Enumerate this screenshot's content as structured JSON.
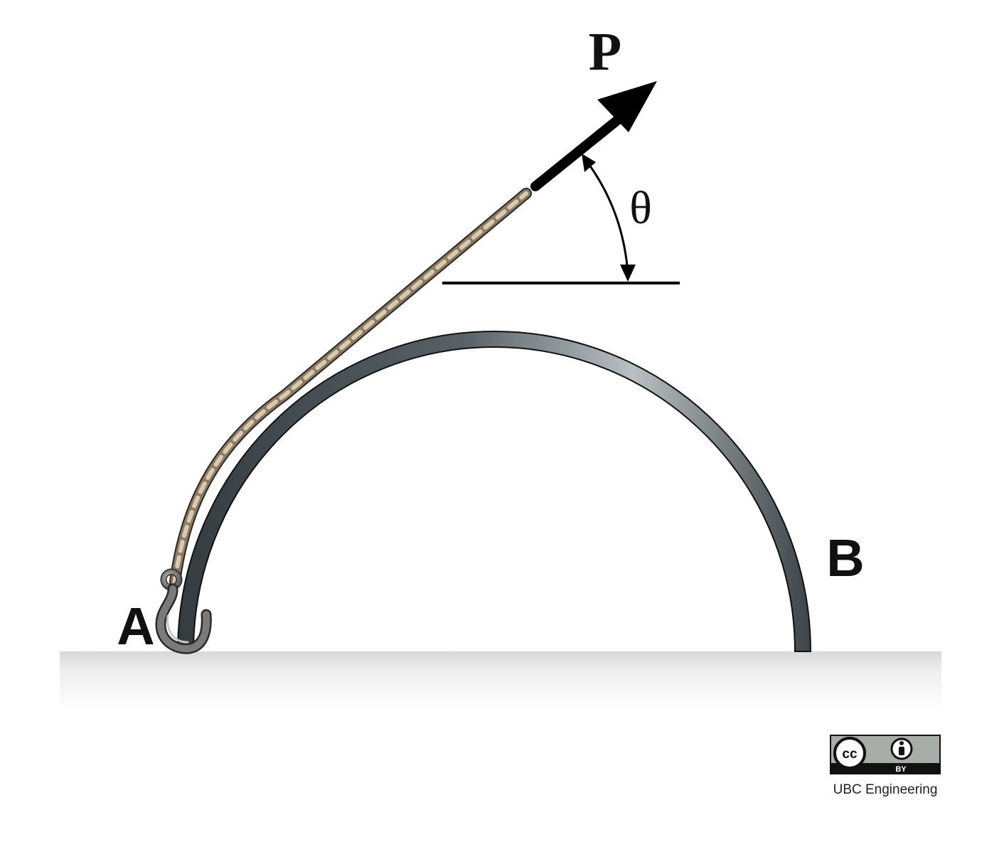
{
  "labels": {
    "force": "P",
    "angle": "θ",
    "point_a": "A",
    "point_b": "B"
  },
  "license": {
    "badge_cc": "cc",
    "badge_by": "BY",
    "credit": "UBC Engineering"
  },
  "colors": {
    "arch_dark": "#3c4448",
    "arch_light": "#b4bcc0",
    "rope_fill": "#8a7a66",
    "rope_dash": "#d9c9ae",
    "arrow": "#000000",
    "hook": "#6e6e6e",
    "ground_top": "#d8d8d8",
    "badge_bg": "#a9ada9"
  }
}
